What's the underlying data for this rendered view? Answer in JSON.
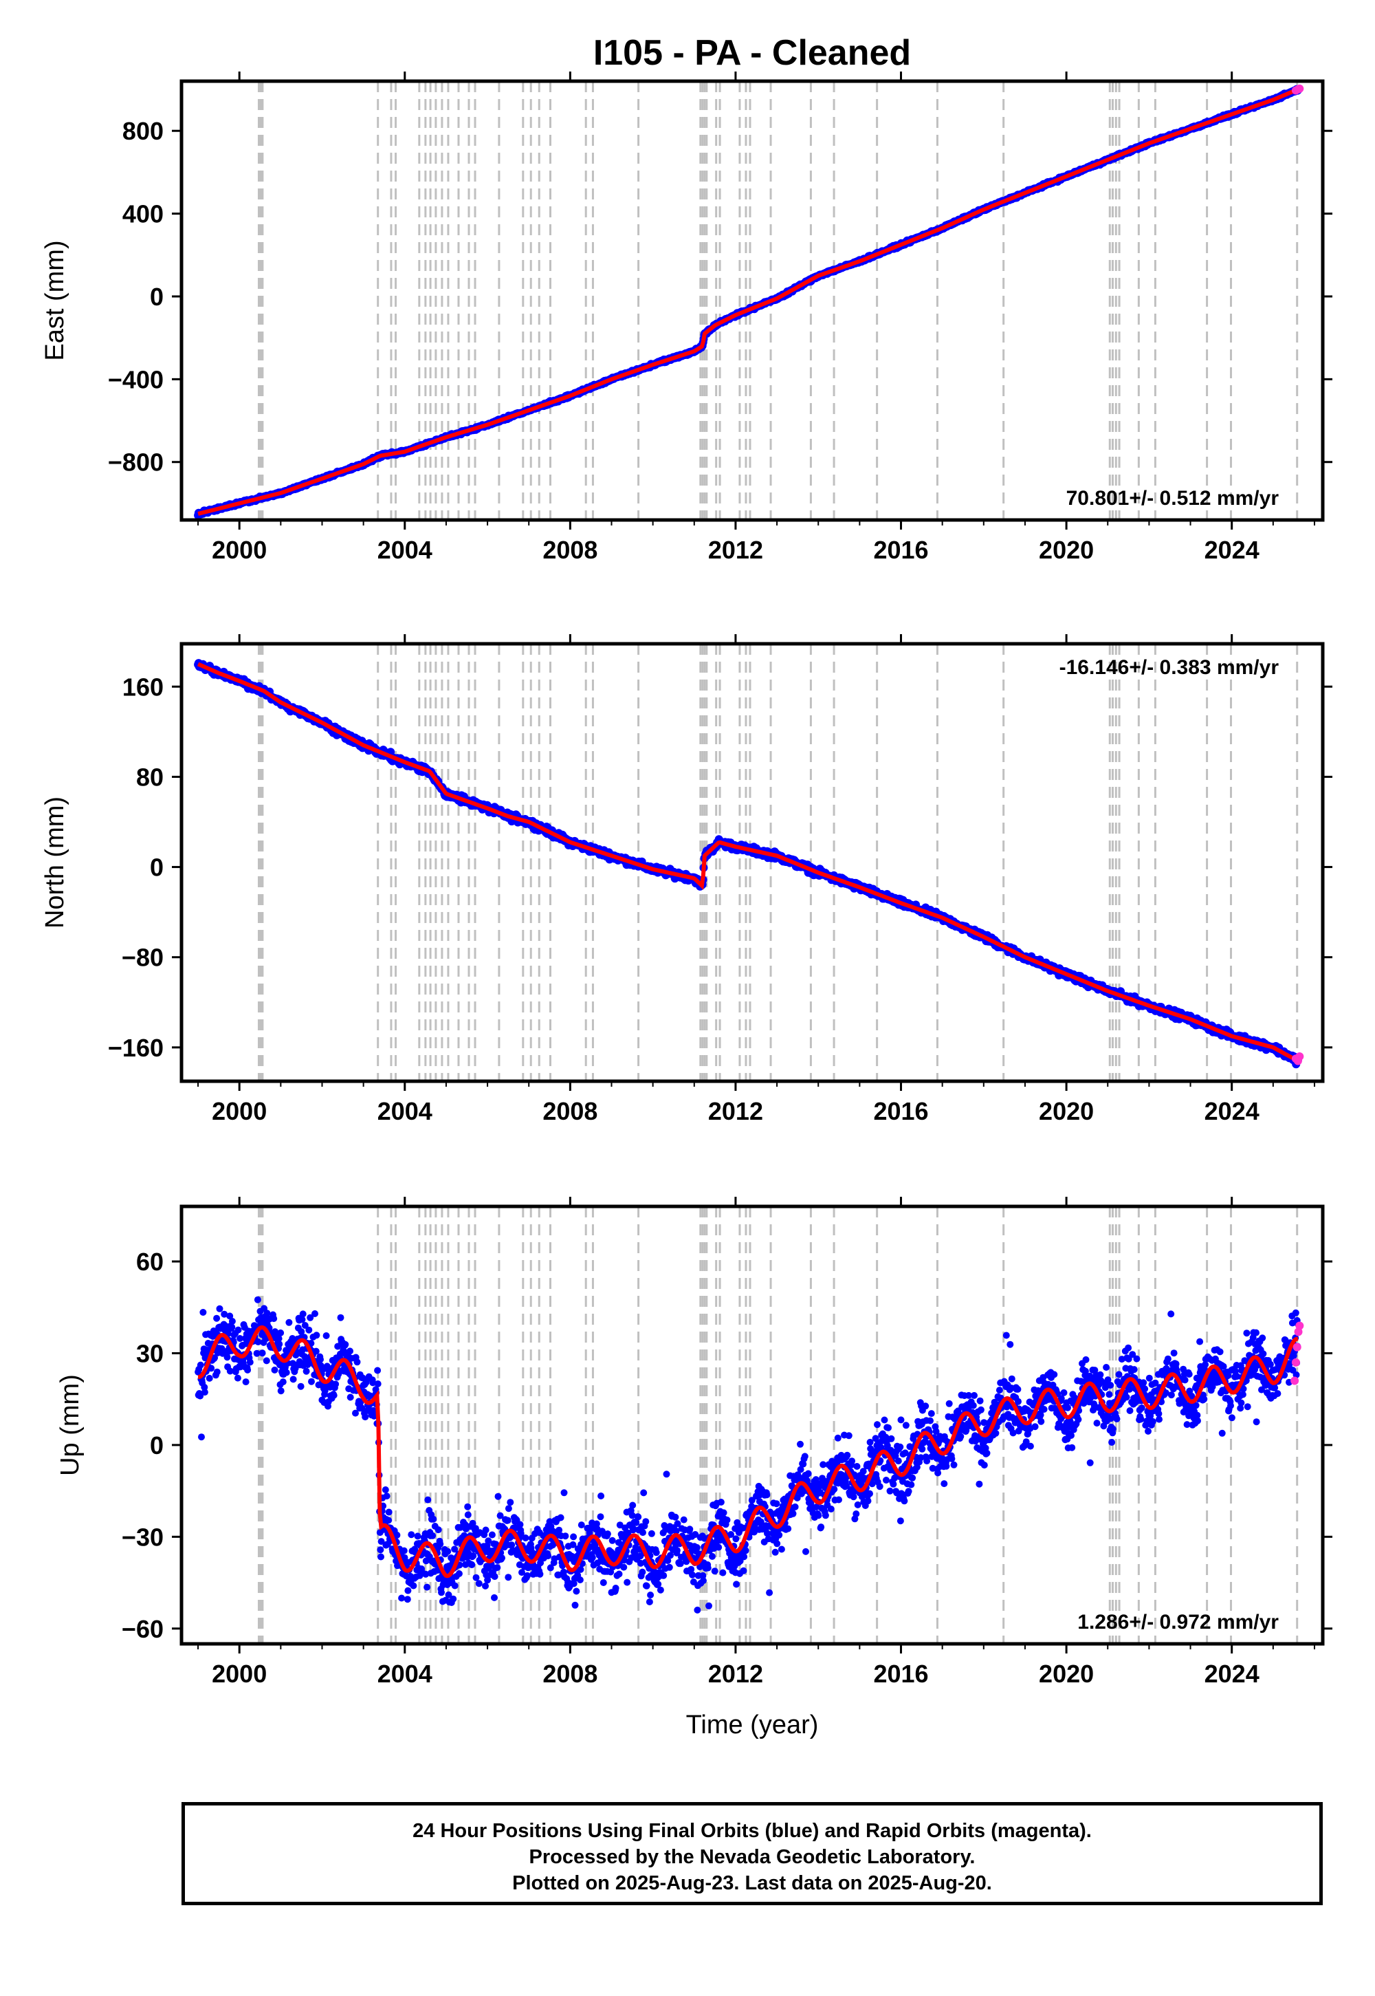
{
  "title": "I105  - PA - Cleaned",
  "xlabel": "Time (year)",
  "footer": {
    "line1": "24 Hour Positions Using Final Orbits (blue) and Rapid Orbits (magenta).",
    "line2": "Processed by the Nevada Geodetic Laboratory.",
    "line3": "Plotted on 2025-Aug-23. Last data on 2025-Aug-20."
  },
  "colors": {
    "final_orbits": "#0000ff",
    "rapid_orbits": "#ff33cc",
    "model": "#ff0000",
    "event_lines": "#c0c0c0"
  },
  "chart_data": [
    {
      "type": "scatter",
      "panel": "east",
      "ylabel": "East (mm)",
      "xlim": [
        1998.6,
        2026.2
      ],
      "ylim": [
        -1080,
        1040
      ],
      "yticks": [
        -800,
        -400,
        0,
        400,
        800
      ],
      "xticks": [
        2000,
        2004,
        2008,
        2012,
        2016,
        2020,
        2024
      ],
      "rate_label": "70.801+/- 0.512 mm/yr",
      "rate_position": "bottom-right",
      "series": [
        {
          "name": "Final Orbits (blue)",
          "x": [
            1999.0,
            2000.0,
            2001.0,
            2002.0,
            2003.0,
            2003.4,
            2004.0,
            2005.0,
            2006.0,
            2007.0,
            2008.0,
            2009.0,
            2010.0,
            2011.0,
            2011.2,
            2011.25,
            2011.5,
            2012.0,
            2013.0,
            2014.0,
            2015.0,
            2016.0,
            2017.0,
            2018.0,
            2019.0,
            2020.0,
            2021.0,
            2022.0,
            2023.0,
            2024.0,
            2025.0,
            2025.6
          ],
          "values": [
            -1050,
            -1000,
            -950,
            -880,
            -810,
            -770,
            -750,
            -680,
            -620,
            -550,
            -480,
            -400,
            -330,
            -265,
            -240,
            -180,
            -140,
            -90,
            -10,
            100,
            170,
            250,
            330,
            420,
            500,
            580,
            660,
            740,
            810,
            880,
            950,
            1000
          ]
        },
        {
          "name": "Rapid Orbits (magenta)",
          "x": [
            2025.55,
            2025.6,
            2025.64
          ],
          "values": [
            995,
            1000,
            1004
          ]
        }
      ]
    },
    {
      "type": "scatter",
      "panel": "north",
      "ylabel": "North (mm)",
      "xlim": [
        1998.6,
        2026.2
      ],
      "ylim": [
        -190,
        198
      ],
      "yticks": [
        -160,
        -80,
        0,
        80,
        160
      ],
      "xticks": [
        2000,
        2004,
        2008,
        2012,
        2016,
        2020,
        2024
      ],
      "rate_label": "-16.146+/- 0.383 mm/yr",
      "rate_position": "top-right",
      "series": [
        {
          "name": "Final Orbits (blue)",
          "x": [
            1999.0,
            1999.5,
            2000.0,
            2000.6,
            2001.0,
            2002.0,
            2003.0,
            2004.0,
            2004.6,
            2005.0,
            2006.0,
            2006.5,
            2007.0,
            2008.0,
            2009.0,
            2010.0,
            2011.0,
            2011.2,
            2011.25,
            2011.6,
            2012.0,
            2013.0,
            2014.0,
            2015.0,
            2016.0,
            2017.0,
            2018.0,
            2019.0,
            2020.0,
            2021.0,
            2022.0,
            2023.0,
            2024.0,
            2025.0,
            2025.6
          ],
          "values": [
            180,
            172,
            165,
            156,
            146,
            128,
            108,
            93,
            85,
            65,
            52,
            45,
            40,
            22,
            10,
            -2,
            -10,
            -17,
            10,
            22,
            18,
            10,
            -5,
            -18,
            -32,
            -45,
            -62,
            -80,
            -95,
            -110,
            -123,
            -135,
            -150,
            -160,
            -172
          ]
        },
        {
          "name": "Rapid Orbits (magenta)",
          "x": [
            2025.55,
            2025.6,
            2025.64
          ],
          "values": [
            -170,
            -172,
            -168
          ]
        }
      ]
    },
    {
      "type": "scatter",
      "panel": "up",
      "ylabel": "Up (mm)",
      "xlim": [
        1998.6,
        2026.2
      ],
      "ylim": [
        -65,
        78
      ],
      "yticks": [
        -60,
        -30,
        0,
        30,
        60
      ],
      "xticks": [
        2000,
        2004,
        2008,
        2012,
        2016,
        2020,
        2024
      ],
      "rate_label": "1.286+/- 0.972 mm/yr",
      "rate_position": "bottom-right",
      "series": [
        {
          "name": "Final Orbits (blue)",
          "x": [
            1999.0,
            2000.0,
            2001.0,
            2002.0,
            2003.0,
            2003.35,
            2003.4,
            2004.0,
            2005.0,
            2006.0,
            2007.0,
            2008.0,
            2009.0,
            2010.0,
            2011.0,
            2012.0,
            2013.0,
            2014.0,
            2015.0,
            2016.0,
            2017.0,
            2018.0,
            2019.0,
            2020.0,
            2021.0,
            2022.0,
            2023.0,
            2024.0,
            2025.0,
            2025.6
          ],
          "values": [
            27,
            34,
            33,
            26,
            20,
            15,
            -30,
            -36,
            -38,
            -33,
            -33,
            -36,
            -34,
            -35,
            -34,
            -30,
            -22,
            -14,
            -10,
            -5,
            2,
            8,
            12,
            14,
            16,
            17,
            19,
            22,
            25,
            30
          ]
        },
        {
          "name": "Rapid Orbits (magenta)",
          "x": [
            2025.52,
            2025.55,
            2025.58,
            2025.61,
            2025.64
          ],
          "values": [
            21,
            27,
            32,
            37,
            39
          ]
        }
      ]
    }
  ],
  "event_lines": [
    2000.47,
    2000.5,
    2000.53,
    2000.56,
    2003.35,
    2003.67,
    2003.78,
    2004.35,
    2004.5,
    2004.62,
    2004.75,
    2004.9,
    2005.05,
    2005.3,
    2005.55,
    2005.7,
    2006.28,
    2006.86,
    2007.05,
    2007.25,
    2007.52,
    2008.38,
    2008.55,
    2009.65,
    2011.15,
    2011.2,
    2011.25,
    2011.3,
    2011.53,
    2011.62,
    2012.1,
    2012.25,
    2012.35,
    2012.85,
    2013.82,
    2014.38,
    2015.42,
    2016.88,
    2018.48,
    2021.05,
    2021.12,
    2021.2,
    2021.28,
    2021.75,
    2022.15,
    2023.4,
    2023.98,
    2025.58
  ]
}
